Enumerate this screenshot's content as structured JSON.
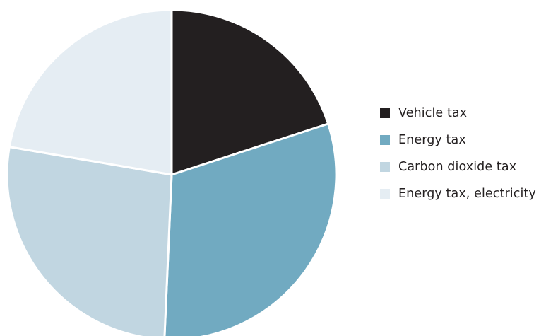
{
  "chart_data": {
    "type": "pie",
    "title": "",
    "slices": [
      {
        "name": "Vehicle tax",
        "value": 20.0,
        "color": "#231f20"
      },
      {
        "name": "Energy tax",
        "value": 30.7,
        "color": "#71aac1"
      },
      {
        "name": "Carbon dioxide tax",
        "value": 27.0,
        "color": "#c1d6e1"
      },
      {
        "name": "Energy tax, electricity",
        "value": 22.3,
        "color": "#e5edf3"
      }
    ],
    "start_angle_deg": 0,
    "direction": "clockwise",
    "legend": {
      "position": "right",
      "items": [
        {
          "label": "Vehicle tax",
          "color": "#231f20"
        },
        {
          "label": "Energy tax",
          "color": "#71aac1"
        },
        {
          "label": "Carbon dioxide tax",
          "color": "#c1d6e1"
        },
        {
          "label": "Energy tax, electricity",
          "color": "#e5edf3"
        }
      ]
    }
  }
}
